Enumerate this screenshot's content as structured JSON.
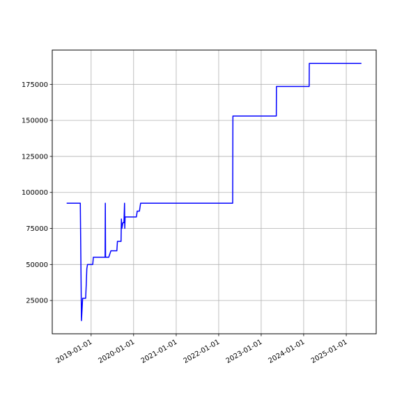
{
  "chart_data": {
    "type": "line",
    "color": "#0000ff",
    "grid": true,
    "x": [
      "2018-06-05",
      "2018-09-30",
      "2018-10-10",
      "2018-10-20",
      "2018-11-15",
      "2018-11-20",
      "2018-11-25",
      "2018-12-01",
      "2019-01-15",
      "2019-01-20",
      "2019-05-01",
      "2019-05-03",
      "2019-05-05",
      "2019-06-01",
      "2019-06-20",
      "2019-08-10",
      "2019-08-15",
      "2019-09-15",
      "2019-09-18",
      "2019-09-22",
      "2019-10-01",
      "2019-10-10",
      "2019-10-15",
      "2019-10-17",
      "2019-10-20",
      "2020-01-25",
      "2020-02-01",
      "2020-02-20",
      "2020-03-01",
      "2022-05-01",
      "2022-05-03",
      "2023-05-11",
      "2023-05-12",
      "2024-02-17",
      "2024-02-18",
      "2025-05-11"
    ],
    "values": [
      92500,
      92500,
      11000,
      26500,
      26500,
      36000,
      47000,
      50000,
      50000,
      55000,
      55000,
      92500,
      55000,
      55000,
      59500,
      59500,
      66000,
      66000,
      81500,
      75000,
      79000,
      79000,
      92500,
      75000,
      83000,
      83000,
      87000,
      87000,
      92500,
      92500,
      153000,
      153000,
      173500,
      173500,
      189500,
      189500
    ],
    "xlim": [
      "2018-02-01",
      "2025-09-15"
    ],
    "xticks": [
      "2019-01-01",
      "2020-01-01",
      "2021-01-01",
      "2022-01-01",
      "2023-01-01",
      "2024-01-01",
      "2025-01-01"
    ],
    "ylim": [
      1900,
      198800
    ],
    "yticks": [
      25000,
      50000,
      75000,
      100000,
      125000,
      150000,
      175000
    ]
  }
}
